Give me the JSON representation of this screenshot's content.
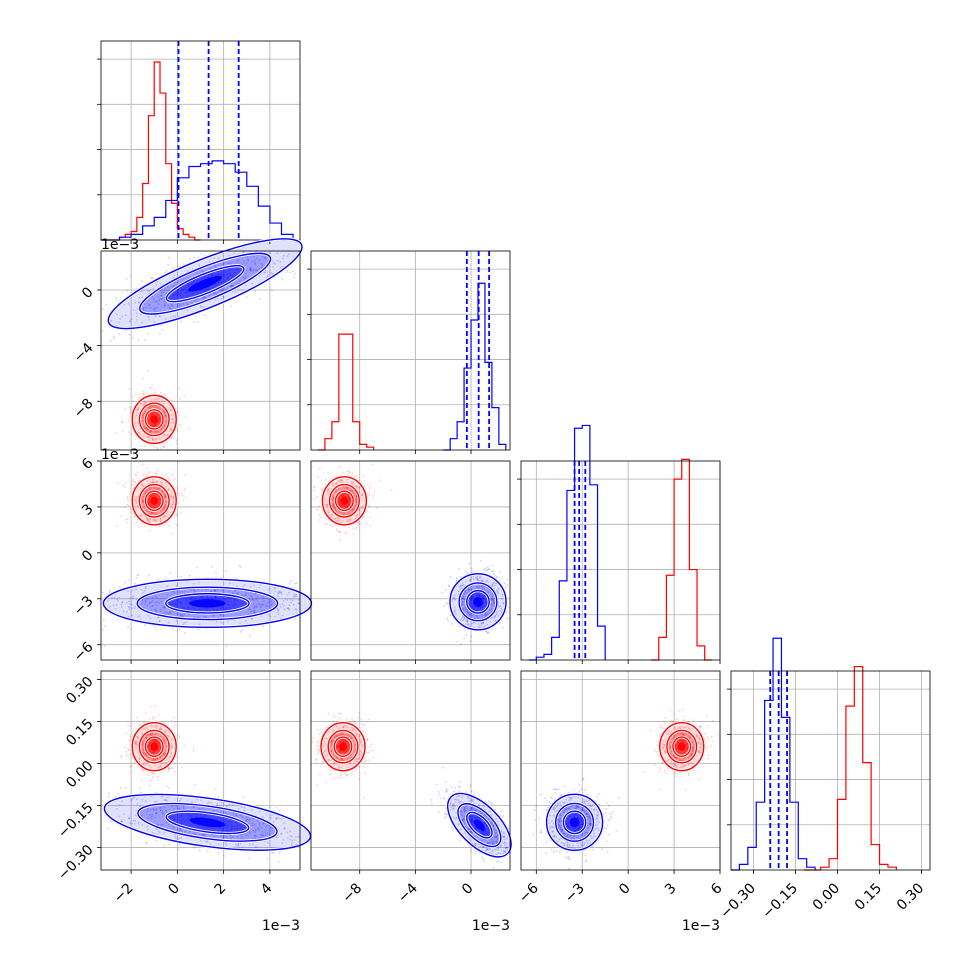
{
  "chart_data": {
    "type": "corner",
    "colors": {
      "series_a": "#ff0000",
      "series_b": "#0000ff",
      "grid": "#b0b0b0"
    },
    "grid": true,
    "series": [
      {
        "color": "red",
        "marginals": {
          "p0": {
            "bins": [
              [
                -3.3,
                0
              ],
              [
                -2.75,
                0
              ],
              [
                -2.5,
                0.01
              ],
              [
                -2.25,
                0.02
              ],
              [
                -2,
                0.03
              ],
              [
                -1.75,
                0.08
              ],
              [
                -1.5,
                0.2
              ],
              [
                -1.25,
                0.44
              ],
              [
                -1,
                0.63
              ],
              [
                -0.75,
                0.52
              ],
              [
                -0.5,
                0.27
              ],
              [
                -0.25,
                0.13
              ],
              [
                0,
                0.04
              ],
              [
                0.25,
                0.02
              ],
              [
                0.5,
                0.01
              ],
              [
                0.75,
                0
              ],
              [
                1,
                0
              ]
            ]
          },
          "p1": {
            "bins": [
              [
                -11,
                0
              ],
              [
                -10.5,
                0.04
              ],
              [
                -10,
                0.1
              ],
              [
                -9.5,
                0.41
              ],
              [
                -9,
                0.41
              ],
              [
                -8.5,
                0.1
              ],
              [
                -8,
                0.02
              ],
              [
                -7.5,
                0.01
              ],
              [
                -7,
                0
              ]
            ]
          },
          "p2": {
            "bins": [
              [
                1.5,
                0
              ],
              [
                2,
                0.08
              ],
              [
                2.5,
                0.3
              ],
              [
                3,
                0.64
              ],
              [
                3.5,
                0.71
              ],
              [
                4,
                0.32
              ],
              [
                4.5,
                0.05
              ],
              [
                5,
                0
              ],
              [
                5.5,
                0
              ]
            ]
          },
          "p3": {
            "bins": [
              [
                -0.12,
                0
              ],
              [
                -0.06,
                0.01
              ],
              [
                -0.03,
                0.04
              ],
              [
                0,
                0.25
              ],
              [
                0.03,
                0.58
              ],
              [
                0.06,
                0.72
              ],
              [
                0.09,
                0.38
              ],
              [
                0.12,
                0.09
              ],
              [
                0.15,
                0.02
              ],
              [
                0.18,
                0.01
              ],
              [
                0.21,
                0
              ]
            ]
          }
        },
        "joint": {
          "p1_p0": {
            "mean": [
              -1,
              -9.3
            ]
          },
          "p2_p0": {
            "mean": [
              -1,
              3.4
            ]
          },
          "p2_p1": {
            "mean": [
              -9.1,
              3.4
            ]
          },
          "p3_p0": {
            "mean": [
              -1,
              0.06
            ]
          },
          "p3_p1": {
            "mean": [
              -9.2,
              0.06
            ]
          },
          "p3_p2": {
            "mean": [
              3.5,
              0.06
            ]
          }
        }
      },
      {
        "color": "blue",
        "quantiles": {
          "p0": [
            0.05,
            1.35,
            2.65
          ],
          "p1": [
            -0.3,
            0.55,
            1.3
          ],
          "p2": [
            -3.5,
            -3.2,
            -2.8
          ],
          "p3": [
            -0.24,
            -0.21,
            -0.18
          ]
        },
        "marginals": {
          "p0": {
            "bins": [
              [
                -3.3,
                0
              ],
              [
                -2.5,
                0.01
              ],
              [
                -2,
                0.02
              ],
              [
                -1.5,
                0.05
              ],
              [
                -1,
                0.08
              ],
              [
                -0.5,
                0.14
              ],
              [
                0,
                0.22
              ],
              [
                0.5,
                0.26
              ],
              [
                1,
                0.27
              ],
              [
                1.5,
                0.28
              ],
              [
                2,
                0.27
              ],
              [
                2.5,
                0.24
              ],
              [
                3,
                0.19
              ],
              [
                3.5,
                0.12
              ],
              [
                4,
                0.06
              ],
              [
                4.5,
                0.02
              ],
              [
                5,
                0
              ]
            ]
          },
          "p1": {
            "bins": [
              [
                -2,
                0
              ],
              [
                -1.5,
                0.04
              ],
              [
                -1,
                0.1
              ],
              [
                -0.5,
                0.29
              ],
              [
                0,
                0.46
              ],
              [
                0.5,
                0.59
              ],
              [
                1,
                0.31
              ],
              [
                1.5,
                0.15
              ],
              [
                2,
                0.02
              ],
              [
                2.5,
                0
              ]
            ]
          },
          "p2": {
            "bins": [
              [
                -6.5,
                0
              ],
              [
                -6,
                0.01
              ],
              [
                -5.5,
                0.02
              ],
              [
                -5,
                0.08
              ],
              [
                -4.5,
                0.28
              ],
              [
                -4,
                0.6
              ],
              [
                -3.5,
                0.82
              ],
              [
                -3,
                0.83
              ],
              [
                -2.5,
                0.62
              ],
              [
                -2,
                0.12
              ],
              [
                -1.5,
                0
              ]
            ]
          },
          "p3": {
            "bins": [
              [
                -0.38,
                0
              ],
              [
                -0.35,
                0.02
              ],
              [
                -0.32,
                0.08
              ],
              [
                -0.29,
                0.24
              ],
              [
                -0.26,
                0.6
              ],
              [
                -0.23,
                0.82
              ],
              [
                -0.2,
                0.54
              ],
              [
                -0.17,
                0.24
              ],
              [
                -0.14,
                0.04
              ],
              [
                -0.11,
                0.01
              ],
              [
                -0.08,
                0
              ]
            ]
          }
        },
        "joint": {
          "p1_p0": {
            "mean": [
              1.2,
              0.45
            ],
            "rotation": 22
          },
          "p2_p0": {
            "mean": [
              1.3,
              -3.3
            ]
          },
          "p2_p1": {
            "mean": [
              0.5,
              -3.2
            ]
          },
          "p3_p0": {
            "mean": [
              1.3,
              -0.21
            ],
            "rotation": -8
          },
          "p3_p1": {
            "mean": [
              0.6,
              -0.22
            ],
            "rotation": -45
          },
          "p3_p2": {
            "mean": [
              -3.5,
              -0.21
            ]
          }
        }
      }
    ],
    "axes": {
      "p0": {
        "range": [
          -3.3,
          5.3
        ],
        "ticks": [
          -2,
          0,
          2,
          4
        ],
        "tick_labels": [
          "−2",
          "0",
          "2",
          "4"
        ],
        "offset_label": "1e−3"
      },
      "p1": {
        "range": [
          -11.5,
          2.8
        ],
        "ticks": [
          -8,
          -4,
          0
        ],
        "tick_labels": [
          "−8",
          "−4",
          "0"
        ],
        "offset_label": "1e−3"
      },
      "p2": {
        "range": [
          -7,
          6
        ],
        "ticks": [
          -6,
          -3,
          0,
          3,
          6
        ],
        "tick_labels": [
          "−6",
          "−3",
          "0",
          "3",
          "6"
        ],
        "offset_label": "1e−3"
      },
      "p3": {
        "range": [
          -0.38,
          0.33
        ],
        "ticks": [
          -0.3,
          -0.15,
          0,
          0.15,
          0.3
        ],
        "tick_labels": [
          "−0.30",
          "−0.15",
          "0.00",
          "0.15",
          "0.30"
        ]
      }
    }
  }
}
